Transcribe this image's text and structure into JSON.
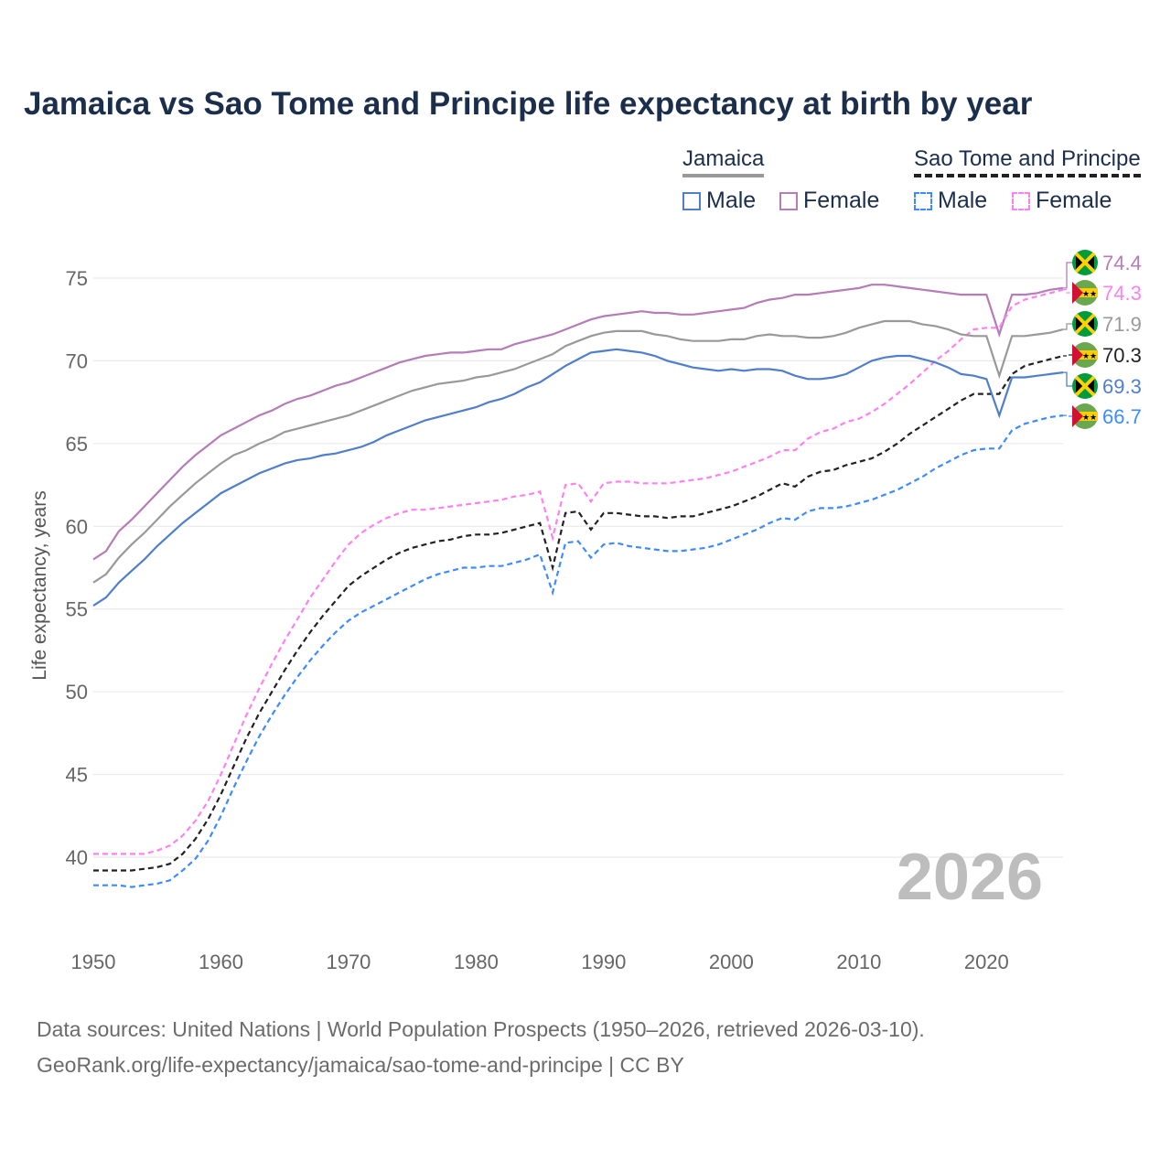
{
  "chart_data": {
    "type": "line",
    "title": "Jamaica vs Sao Tome and Principe life expectancy at birth by year",
    "xlabel": "",
    "ylabel": "Life expectancy, years",
    "xlim": [
      1950,
      2026
    ],
    "ylim": [
      37,
      77
    ],
    "x_ticks": [
      1950,
      1960,
      1970,
      1980,
      1990,
      2000,
      2010,
      2020
    ],
    "y_ticks": [
      40,
      45,
      50,
      55,
      60,
      65,
      70,
      75
    ],
    "grid": true,
    "year_watermark": "2026",
    "legend": {
      "groups": [
        {
          "name": "Jamaica",
          "items": [
            "Male",
            "Female"
          ]
        },
        {
          "name": "Sao Tome and Principe",
          "items": [
            "Male",
            "Female"
          ]
        }
      ],
      "placement": "top-right"
    },
    "x_start": 1950,
    "series": [
      {
        "name": "Jamaica Female",
        "color": "#b57cb8",
        "dash": false,
        "flag": "jamaica",
        "end_label": "74.4",
        "values": [
          58,
          58.5,
          59.7,
          60.4,
          61.2,
          62,
          62.8,
          63.6,
          64.3,
          64.9,
          65.5,
          65.9,
          66.3,
          66.7,
          67,
          67.4,
          67.7,
          67.9,
          68.2,
          68.5,
          68.7,
          69,
          69.3,
          69.6,
          69.9,
          70.1,
          70.3,
          70.4,
          70.5,
          70.5,
          70.6,
          70.7,
          70.7,
          71,
          71.2,
          71.4,
          71.6,
          71.9,
          72.2,
          72.5,
          72.7,
          72.8,
          72.9,
          73,
          72.9,
          72.9,
          72.8,
          72.8,
          72.9,
          73,
          73.1,
          73.2,
          73.5,
          73.7,
          73.8,
          74,
          74,
          74.1,
          74.2,
          74.3,
          74.4,
          74.6,
          74.6,
          74.5,
          74.4,
          74.3,
          74.2,
          74.1,
          74,
          74,
          74,
          71.6,
          74,
          74,
          74.1,
          74.3,
          74.4
        ]
      },
      {
        "name": "Sao Tome and Principe Female",
        "color": "#ff80f0",
        "dash": true,
        "flag": "stp",
        "end_label": "74.3",
        "values": [
          40.2,
          40.2,
          40.2,
          40.2,
          40.2,
          40.4,
          40.7,
          41.3,
          42.2,
          43.4,
          45,
          46.8,
          48.6,
          50.2,
          51.7,
          53.1,
          54.4,
          55.7,
          56.8,
          57.9,
          58.9,
          59.6,
          60.1,
          60.5,
          60.8,
          61,
          61,
          61.1,
          61.2,
          61.3,
          61.4,
          61.5,
          61.6,
          61.8,
          61.9,
          62.1,
          59.3,
          62.5,
          62.6,
          61.5,
          62.6,
          62.7,
          62.7,
          62.6,
          62.6,
          62.6,
          62.7,
          62.8,
          62.9,
          63.1,
          63.3,
          63.6,
          63.9,
          64.2,
          64.6,
          64.6,
          65.3,
          65.7,
          65.9,
          66.3,
          66.5,
          66.9,
          67.4,
          68,
          68.6,
          69.3,
          70,
          70.6,
          71.3,
          71.9,
          72,
          72,
          73.3,
          73.7,
          73.9,
          74.1,
          74.3
        ]
      },
      {
        "name": "Jamaica",
        "color": "#999999",
        "dash": false,
        "flag": "jamaica",
        "end_label": "71.9",
        "values": [
          56.6,
          57.1,
          58.1,
          58.9,
          59.6,
          60.4,
          61.2,
          61.9,
          62.6,
          63.2,
          63.8,
          64.3,
          64.6,
          65,
          65.3,
          65.7,
          65.9,
          66.1,
          66.3,
          66.5,
          66.7,
          67,
          67.3,
          67.6,
          67.9,
          68.2,
          68.4,
          68.6,
          68.7,
          68.8,
          69,
          69.1,
          69.3,
          69.5,
          69.8,
          70.1,
          70.4,
          70.9,
          71.2,
          71.5,
          71.7,
          71.8,
          71.8,
          71.8,
          71.6,
          71.5,
          71.3,
          71.2,
          71.2,
          71.2,
          71.3,
          71.3,
          71.5,
          71.6,
          71.5,
          71.5,
          71.4,
          71.4,
          71.5,
          71.7,
          72,
          72.2,
          72.4,
          72.4,
          72.4,
          72.2,
          72.1,
          71.9,
          71.6,
          71.5,
          71.5,
          69.1,
          71.5,
          71.5,
          71.6,
          71.7,
          71.9
        ]
      },
      {
        "name": "Sao Tome and Principe",
        "color": "#222222",
        "dash": true,
        "flag": "stp",
        "end_label": "70.3",
        "values": [
          39.2,
          39.2,
          39.2,
          39.2,
          39.3,
          39.4,
          39.6,
          40.2,
          41.1,
          42.3,
          43.8,
          45.5,
          47.2,
          48.7,
          50,
          51.3,
          52.5,
          53.6,
          54.6,
          55.5,
          56.4,
          57,
          57.5,
          58,
          58.4,
          58.7,
          58.9,
          59.1,
          59.2,
          59.4,
          59.5,
          59.5,
          59.6,
          59.8,
          60,
          60.2,
          57.5,
          60.8,
          60.9,
          59.8,
          60.8,
          60.8,
          60.7,
          60.6,
          60.6,
          60.5,
          60.6,
          60.6,
          60.8,
          61,
          61.2,
          61.5,
          61.8,
          62.2,
          62.6,
          62.4,
          63,
          63.3,
          63.4,
          63.7,
          63.9,
          64.1,
          64.5,
          65,
          65.6,
          66.1,
          66.6,
          67.1,
          67.6,
          68,
          68,
          68,
          69.2,
          69.7,
          69.9,
          70.1,
          70.3
        ]
      },
      {
        "name": "Jamaica Male",
        "color": "#4f7fcc",
        "dash": false,
        "flag": "jamaica",
        "end_label": "69.3",
        "values": [
          55.2,
          55.7,
          56.6,
          57.3,
          58,
          58.8,
          59.5,
          60.2,
          60.8,
          61.4,
          62,
          62.4,
          62.8,
          63.2,
          63.5,
          63.8,
          64,
          64.1,
          64.3,
          64.4,
          64.6,
          64.8,
          65.1,
          65.5,
          65.8,
          66.1,
          66.4,
          66.6,
          66.8,
          67,
          67.2,
          67.5,
          67.7,
          68,
          68.4,
          68.7,
          69.2,
          69.7,
          70.1,
          70.5,
          70.6,
          70.7,
          70.6,
          70.5,
          70.3,
          70,
          69.8,
          69.6,
          69.5,
          69.4,
          69.5,
          69.4,
          69.5,
          69.5,
          69.4,
          69.1,
          68.9,
          68.9,
          69,
          69.2,
          69.6,
          70,
          70.2,
          70.3,
          70.3,
          70.1,
          69.9,
          69.6,
          69.2,
          69.1,
          68.9,
          66.7,
          69,
          69,
          69.1,
          69.2,
          69.3
        ]
      },
      {
        "name": "Sao Tome and Principe Male",
        "color": "#3d8bff",
        "dash": true,
        "flag": "stp",
        "end_label": "66.7",
        "values": [
          38.3,
          38.3,
          38.3,
          38.2,
          38.3,
          38.4,
          38.6,
          39.2,
          39.9,
          41,
          42.5,
          44.2,
          45.8,
          47.3,
          48.6,
          49.8,
          50.9,
          51.9,
          52.8,
          53.6,
          54.3,
          54.8,
          55.2,
          55.6,
          56,
          56.4,
          56.8,
          57.1,
          57.3,
          57.5,
          57.5,
          57.6,
          57.6,
          57.8,
          58,
          58.3,
          56,
          59,
          59.1,
          58.1,
          58.9,
          59,
          58.8,
          58.7,
          58.6,
          58.5,
          58.5,
          58.6,
          58.7,
          58.9,
          59.2,
          59.5,
          59.8,
          60.2,
          60.5,
          60.4,
          60.9,
          61.1,
          61.1,
          61.2,
          61.4,
          61.6,
          61.9,
          62.2,
          62.6,
          63,
          63.5,
          63.9,
          64.3,
          64.6,
          64.7,
          64.7,
          65.8,
          66.2,
          66.4,
          66.6,
          66.7
        ]
      }
    ]
  },
  "legend_labels": {
    "jamaica": "Jamaica",
    "stp": "Sao Tome and Principe",
    "male": "Male",
    "female": "Female"
  },
  "footer": {
    "line1": "Data sources: United Nations | World Population Prospects (1950–2026, retrieved 2026-03-10).",
    "line2": "GeoRank.org/life-expectancy/jamaica/sao-tome-and-principe | CC BY"
  }
}
